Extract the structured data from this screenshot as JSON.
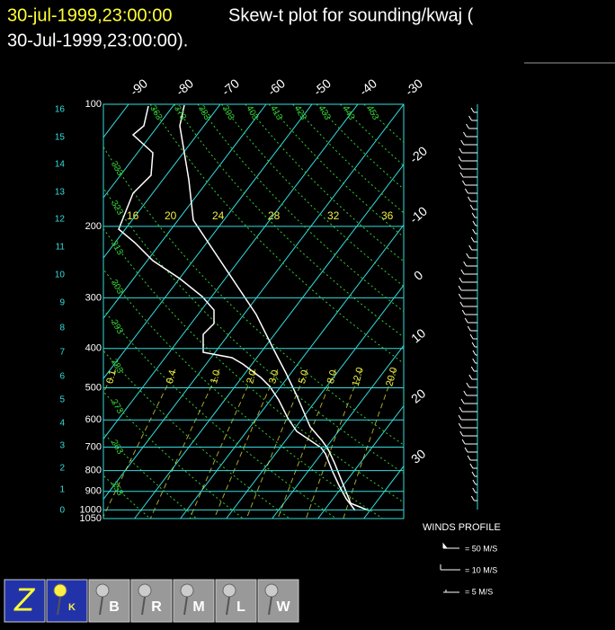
{
  "header": {
    "date": "30-jul-1999,23:00:00",
    "title": "Skew-t plot for sounding/kwaj (",
    "title_line2": "30-Jul-1999,23:00:00)."
  },
  "plot": {
    "pressure_levels": [
      100,
      200,
      300,
      400,
      500,
      600,
      700,
      800,
      900,
      1000,
      1050
    ],
    "heights_km": [
      16,
      15,
      14,
      13,
      12,
      11,
      10,
      9,
      8,
      7,
      6,
      5,
      4,
      3,
      2,
      1,
      0
    ],
    "isotherms_top": [
      -90,
      -80,
      -70,
      -60,
      -50,
      -40,
      -30
    ],
    "isotherms_right": [
      -20,
      -10,
      0,
      10,
      20,
      30
    ],
    "dry_adiabats": [
      453,
      443,
      433,
      423,
      413,
      403,
      393,
      383,
      373,
      363,
      333,
      323,
      313,
      303,
      293,
      283,
      273,
      263,
      253,
      243
    ],
    "upper_labels": [
      "16",
      "20",
      "24",
      "28",
      "32",
      "36"
    ],
    "mixing_ratios": [
      "0.1",
      "0.4",
      "1.0",
      "2.0",
      "3.0",
      "5.0",
      "8.0",
      "12.0",
      "20.0"
    ]
  },
  "winds": {
    "title": "WINDS PROFILE",
    "legend": [
      "= 50 M/S",
      "= 10 M/S",
      "= 5 M/S"
    ]
  },
  "toolbar": {
    "buttons": [
      "K",
      "B",
      "R",
      "M",
      "L",
      "W"
    ]
  }
}
